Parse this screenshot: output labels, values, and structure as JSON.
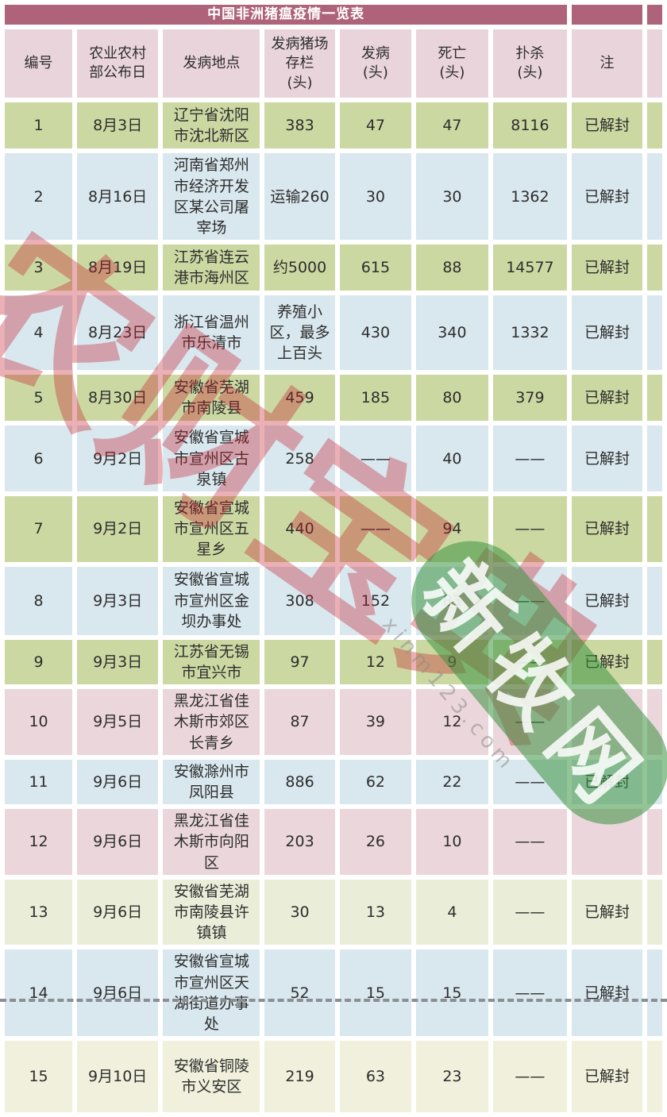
{
  "title": "中国非洲猪瘟疫情一览表",
  "colors": {
    "title_bar": "#ae637a",
    "header_bg": "#e9d4db",
    "green": "#ccd8a2",
    "blue": "#d9e7ee",
    "pink": "#ebd6dc",
    "cream_green": "#eaeed9",
    "cream": "#f0f0dc",
    "watermark_red": "rgba(196,30,42,0.35)",
    "stamp_green": "rgba(58,148,64,0.55)"
  },
  "columns": [
    "编号",
    "农业农村\n部公布日",
    "发病地点",
    "发病猪场\n存栏\n(头)",
    "发病\n(头)",
    "死亡\n(头)",
    "扑杀\n(头)",
    "注"
  ],
  "rows": [
    {
      "tone": "green",
      "cells": [
        "1",
        "8月3日",
        "辽宁省沈阳市沈北新区",
        "383",
        "47",
        "47",
        "8116",
        "已解封"
      ]
    },
    {
      "tone": "blue",
      "cells": [
        "2",
        "8月16日",
        "河南省郑州市经济开发区某公司屠宰场",
        "运输260",
        "30",
        "30",
        "1362",
        "已解封"
      ]
    },
    {
      "tone": "green",
      "cells": [
        "3",
        "8月19日",
        "江苏省连云港市海州区",
        "约5000",
        "615",
        "88",
        "14577",
        "已解封"
      ]
    },
    {
      "tone": "blue",
      "cells": [
        "4",
        "8月23日",
        "浙江省温州市乐清市",
        "养殖小区，最多上百头",
        "430",
        "340",
        "1332",
        "已解封"
      ]
    },
    {
      "tone": "green",
      "cells": [
        "5",
        "8月30日",
        "安徽省芜湖市南陵县",
        "459",
        "185",
        "80",
        "379",
        "已解封"
      ]
    },
    {
      "tone": "blue",
      "cells": [
        "6",
        "9月2日",
        "安徽省宣城市宣州区古泉镇",
        "258",
        "——",
        "40",
        "——",
        "已解封"
      ]
    },
    {
      "tone": "green",
      "cells": [
        "7",
        "9月2日",
        "安徽省宣城市宣州区五星乡",
        "440",
        "——",
        "94",
        "——",
        "已解封"
      ]
    },
    {
      "tone": "blue",
      "cells": [
        "8",
        "9月3日",
        "安徽省宣城市宣州区金坝办事处",
        "308",
        "152",
        "83",
        "——",
        "已解封"
      ]
    },
    {
      "tone": "green",
      "cells": [
        "9",
        "9月3日",
        "江苏省无锡市宜兴市",
        "97",
        "12",
        "9",
        "——",
        "已解封"
      ]
    },
    {
      "tone": "pink",
      "cells": [
        "10",
        "9月5日",
        "黑龙江省佳木斯市郊区长青乡",
        "87",
        "39",
        "12",
        "——",
        ""
      ]
    },
    {
      "tone": "blue",
      "cells": [
        "11",
        "9月6日",
        "安徽滁州市凤阳县",
        "886",
        "62",
        "22",
        "——",
        "已解封"
      ]
    },
    {
      "tone": "pink",
      "cells": [
        "12",
        "9月6日",
        "黑龙江省佳木斯市向阳区",
        "203",
        "26",
        "10",
        "——",
        ""
      ]
    },
    {
      "tone": "cream_green",
      "cells": [
        "13",
        "9月6日",
        "安徽省芜湖市南陵县许镇镇",
        "30",
        "13",
        "4",
        "——",
        "已解封"
      ]
    },
    {
      "tone": "blue",
      "cells": [
        "14",
        "9月6日",
        "安徽省宣城市宣州区天湖街道办事处",
        "52",
        "15",
        "15",
        "——",
        "已解封"
      ]
    },
    {
      "tone": "cream",
      "cells": [
        "15",
        "9月10日",
        "安徽省铜陵市义安区",
        "219",
        "63",
        "23",
        "——",
        "已解封"
      ]
    }
  ],
  "watermarks": {
    "red_text": "农财宝典",
    "stamp_text": "新牧网",
    "url_text": "xinm123.com"
  }
}
